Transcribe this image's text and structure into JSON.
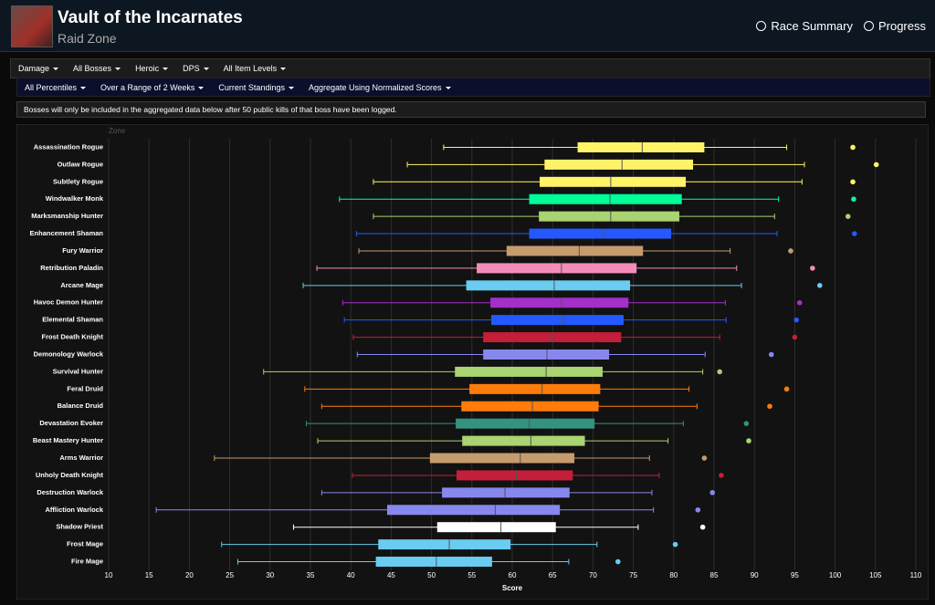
{
  "header": {
    "title": "Vault of the Incarnates",
    "subtitle": "Raid Zone",
    "links": [
      "Race Summary",
      "Progress"
    ]
  },
  "filters": {
    "row1": [
      "Damage",
      "All Bosses",
      "Heroic",
      "DPS",
      "All Item Levels"
    ],
    "row2": [
      "All Percentiles",
      "Over a Range of 2 Weeks",
      "Current Standings",
      "Aggregate Using Normalized Scores"
    ]
  },
  "notice": "Bosses will only be included in the aggregated data below after 50 public kills of that boss have been logged.",
  "chart_data": {
    "type": "boxplot",
    "category_label": "Zone",
    "xlabel": "Score",
    "categories": [
      "Assassination Rogue",
      "Outlaw Rogue",
      "Subtlety Rogue",
      "Windwalker Monk",
      "Marksmanship Hunter",
      "Enhancement Shaman",
      "Fury Warrior",
      "Retribution Paladin",
      "Arcane Mage",
      "Havoc Demon Hunter",
      "Elemental Shaman",
      "Frost Death Knight",
      "Demonology Warlock",
      "Survival Hunter",
      "Feral Druid",
      "Balance Druid",
      "Devastation Evoker",
      "Beast Mastery Hunter",
      "Arms Warrior",
      "Unholy Death Knight",
      "Destruction Warlock",
      "Affliction Warlock",
      "Shadow Priest",
      "Frost Mage",
      "Fire Mage"
    ],
    "colors": [
      "#fff468",
      "#fff468",
      "#fff468",
      "#00ff98",
      "#aad372",
      "#2459ff",
      "#c69b6d",
      "#f48cba",
      "#69ccf0",
      "#a330c9",
      "#2459ff",
      "#c41e3a",
      "#8788ee",
      "#aad372",
      "#ff7c0a",
      "#ff7c0a",
      "#33937f",
      "#aad372",
      "#c69b6d",
      "#c41e3a",
      "#8788ee",
      "#8788ee",
      "#ffffff",
      "#69ccf0",
      "#69ccf0"
    ],
    "whisker_low": [
      51.5,
      47.0,
      42.8,
      38.6,
      42.8,
      40.7,
      41.0,
      35.8,
      34.1,
      39.0,
      39.2,
      40.3,
      40.8,
      29.2,
      34.3,
      36.4,
      34.5,
      35.9,
      23.1,
      40.2,
      36.4,
      15.9,
      32.9,
      24.0,
      26.0
    ],
    "q1": [
      68.1,
      64.0,
      63.4,
      62.1,
      63.3,
      62.1,
      59.3,
      55.6,
      54.3,
      57.3,
      57.4,
      56.4,
      56.4,
      52.9,
      54.7,
      53.7,
      53.0,
      53.8,
      49.8,
      53.1,
      51.3,
      44.5,
      50.7,
      43.4,
      43.1
    ],
    "median": [
      76.1,
      73.6,
      72.2,
      72.1,
      72.2,
      71.3,
      68.3,
      66.1,
      65.2,
      66.1,
      66.3,
      65.0,
      64.3,
      64.2,
      63.7,
      62.5,
      62.1,
      62.3,
      61.0,
      60.5,
      59.1,
      57.9,
      58.6,
      52.2,
      50.6
    ],
    "q3": [
      83.8,
      82.4,
      81.5,
      81.0,
      80.7,
      79.7,
      76.2,
      75.4,
      74.6,
      74.4,
      73.8,
      73.5,
      72.0,
      71.2,
      70.9,
      70.7,
      70.2,
      69.0,
      67.7,
      67.5,
      67.1,
      65.9,
      65.4,
      59.8,
      57.5
    ],
    "whisker_high": [
      94.0,
      96.2,
      95.9,
      93.0,
      92.5,
      92.8,
      87.0,
      87.8,
      88.4,
      86.4,
      86.5,
      85.7,
      83.9,
      83.6,
      81.9,
      82.9,
      81.2,
      79.3,
      77.0,
      78.2,
      77.3,
      77.5,
      75.6,
      70.5,
      67.0
    ],
    "outliers": [
      102.2,
      105.1,
      102.2,
      102.3,
      101.6,
      102.4,
      94.5,
      97.2,
      98.1,
      95.6,
      95.2,
      95.0,
      92.1,
      85.7,
      94.0,
      91.9,
      89.0,
      89.3,
      83.8,
      85.9,
      84.8,
      83.0,
      83.6,
      80.2,
      73.1
    ],
    "xlim": [
      10,
      110
    ],
    "xticks": [
      10,
      15,
      20,
      25,
      30,
      35,
      40,
      45,
      50,
      55,
      60,
      65,
      70,
      75,
      80,
      85,
      90,
      95,
      100,
      105,
      110
    ],
    "grid": true
  }
}
